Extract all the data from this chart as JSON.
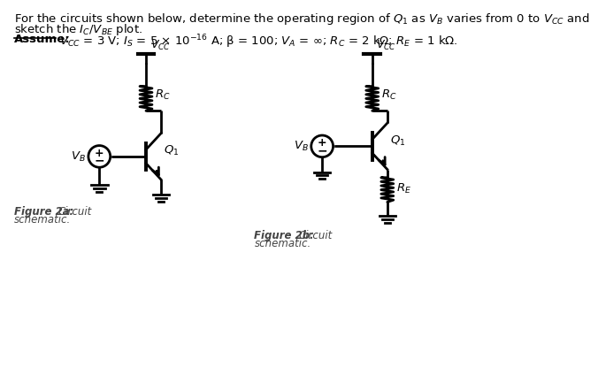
{
  "bg_color": "#ffffff",
  "text_color": "#000000",
  "line_color": "#000000",
  "title_line1": "For the circuits shown below, determine the operating region of $Q_1$ as $V_B$ varies from 0 to $V_{CC}$ and",
  "title_line2": "sketch the $I_C$/$V_{BE}$ plot.",
  "assume_label": "Assume:",
  "assume_text": " $V_{CC}$ = 3 V; $I_S$ = 5 × 10$^{-16}$ A; β = 100; $V_A$ = ∞; $R_C$ = 2 kΩ; $R_E$ = 1 kΩ.",
  "fig2a_label": "Figure 2a:",
  "fig2a_text": " Circuit\nschematic.",
  "fig2b_label": "Figure 2b:",
  "fig2b_text": " Circuit\nschematic.",
  "vcc_label": "$V_{CC}$",
  "rc_label": "$R_C$",
  "re_label": "$R_E$",
  "q1_label": "$Q_1$",
  "vb_label": "$V_B$"
}
